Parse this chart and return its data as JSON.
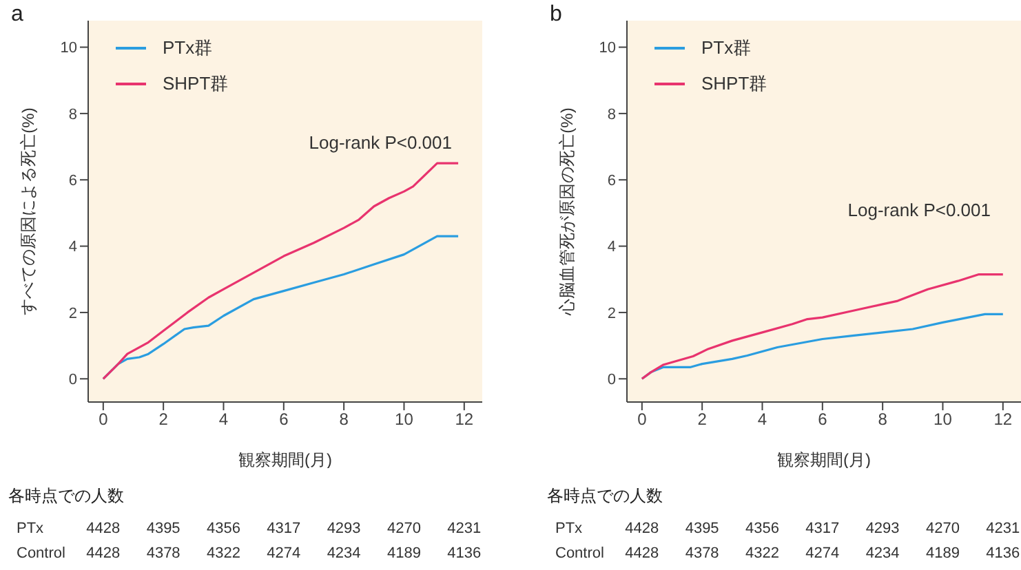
{
  "chart_data": [
    {
      "type": "line",
      "title": "a",
      "xlabel": "観察期間(月)",
      "ylabel": "すべての原因による死亡(%)",
      "xlim": [
        -0.5,
        12.6
      ],
      "ylim": [
        -0.7,
        10.8
      ],
      "xticks": [
        0,
        2,
        4,
        6,
        8,
        10,
        12
      ],
      "yticks": [
        0,
        2,
        4,
        6,
        8,
        10
      ],
      "legend": "top left",
      "grid": false,
      "marker": "none",
      "line_style": "solid",
      "series": [
        {
          "name": "PTx群",
          "color": "#2a9de0",
          "x": [
            0,
            0.5,
            0.8,
            1.2,
            1.5,
            2,
            2.7,
            3,
            3.5,
            4,
            5,
            6,
            7,
            8,
            9,
            10,
            11.1,
            11.8
          ],
          "values": [
            0,
            0.45,
            0.6,
            0.65,
            0.75,
            1.05,
            1.5,
            1.55,
            1.6,
            1.9,
            2.4,
            2.65,
            2.9,
            3.15,
            3.45,
            3.75,
            4.3,
            4.3
          ]
        },
        {
          "name": "SHPT群",
          "color": "#e8336e",
          "x": [
            0,
            0.5,
            0.8,
            1.5,
            2,
            2.8,
            3.5,
            4,
            5,
            6,
            7,
            8,
            8.5,
            9,
            9.5,
            10,
            10.3,
            11.1,
            11.8
          ],
          "values": [
            0,
            0.45,
            0.75,
            1.1,
            1.45,
            2.0,
            2.45,
            2.7,
            3.2,
            3.7,
            4.1,
            4.55,
            4.8,
            5.2,
            5.45,
            5.65,
            5.8,
            6.5,
            6.5
          ]
        }
      ],
      "annotations": [
        "Log-rank P<0.001",
        "各時点での人数",
        "PTx 4428 4395 4356 4317 4293 4270 4231",
        "Control 4428 4378 4322 4274 4234 4189 4136"
      ]
    },
    {
      "type": "line",
      "title": "b",
      "xlabel": "観察期間(月)",
      "ylabel": "心脳血管死が原因の死亡(%)",
      "xlim": [
        -0.5,
        12.6
      ],
      "ylim": [
        -0.7,
        10.8
      ],
      "xticks": [
        0,
        2,
        4,
        6,
        8,
        10,
        12
      ],
      "yticks": [
        0,
        2,
        4,
        6,
        8,
        10
      ],
      "legend": "top left",
      "grid": false,
      "marker": "none",
      "line_style": "solid",
      "series": [
        {
          "name": "PTx群",
          "color": "#2a9de0",
          "x": [
            0,
            0.3,
            0.7,
            1,
            1.6,
            2,
            3,
            3.5,
            4.5,
            6,
            7,
            8,
            9,
            10,
            11.4,
            12
          ],
          "values": [
            0,
            0.2,
            0.35,
            0.35,
            0.35,
            0.45,
            0.6,
            0.7,
            0.95,
            1.2,
            1.3,
            1.4,
            1.5,
            1.7,
            1.95,
            1.95
          ]
        },
        {
          "name": "SHPT群",
          "color": "#e8336e",
          "x": [
            0,
            0.3,
            0.7,
            1.7,
            2.2,
            3,
            4,
            5,
            5.5,
            6,
            7,
            8,
            8.5,
            9.5,
            10.5,
            11.2,
            12
          ],
          "values": [
            0,
            0.2,
            0.42,
            0.68,
            0.9,
            1.15,
            1.4,
            1.65,
            1.8,
            1.85,
            2.05,
            2.25,
            2.35,
            2.7,
            2.95,
            3.15,
            3.15
          ]
        }
      ],
      "annotations": [
        "Log-rank P<0.001",
        "各時点での人数",
        "PTx 4428 4395 4356 4317 4293 4270 4231",
        "Control 4428 4378 4322 4274 4234 4189 4136"
      ]
    }
  ]
}
